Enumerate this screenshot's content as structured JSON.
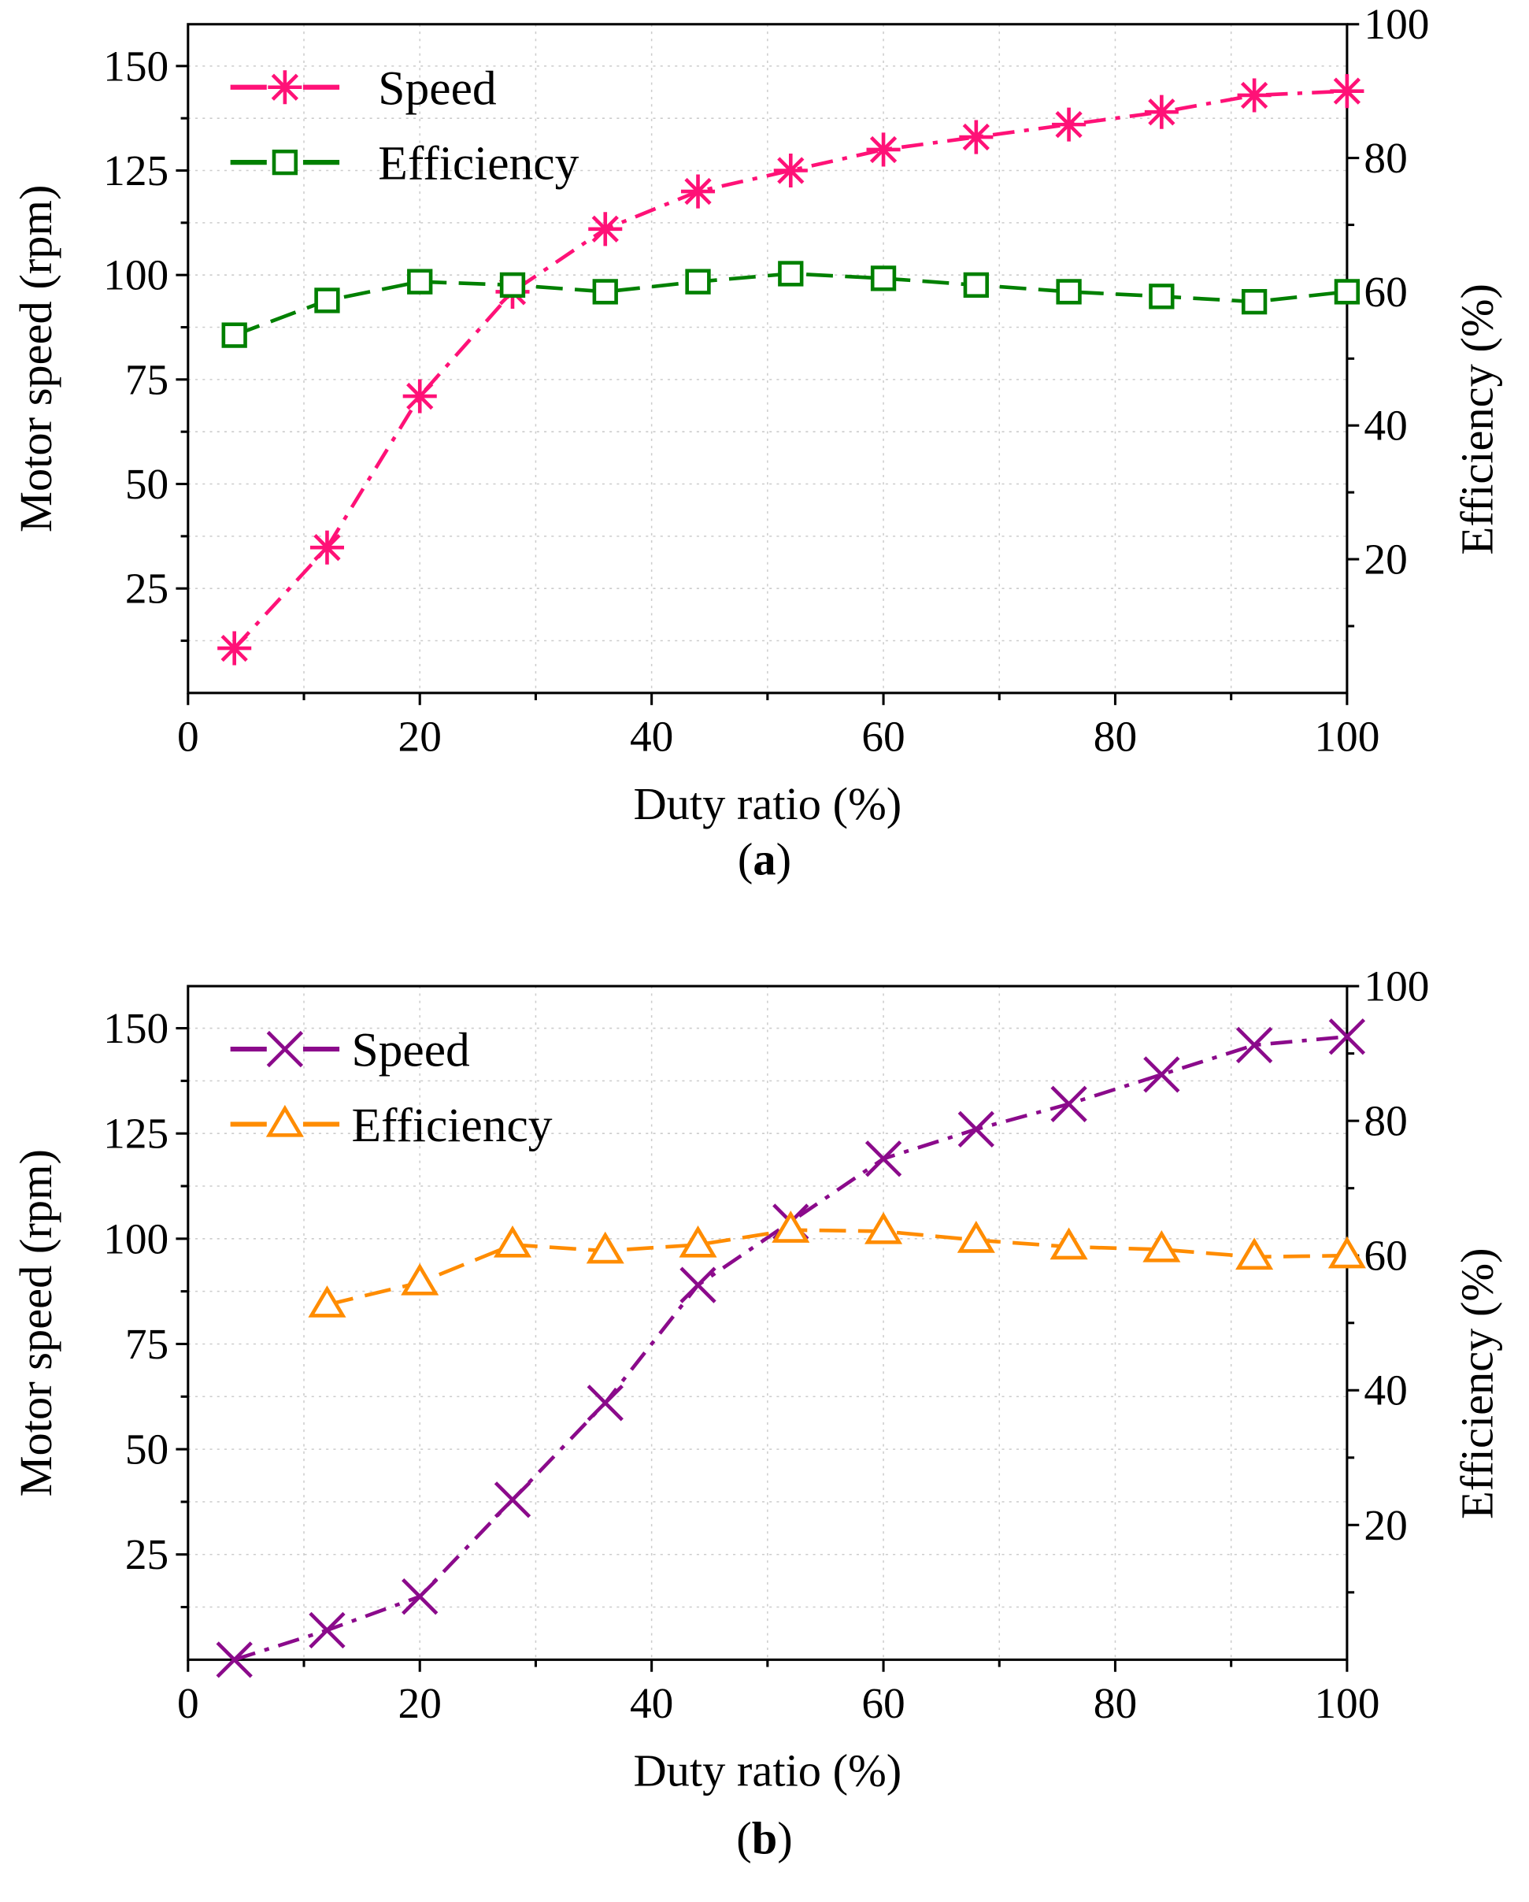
{
  "chart_data": [
    {
      "type": "line",
      "caption": "a",
      "xlabel": "Duty ratio (%)",
      "ylabel": "Motor speed (rpm)",
      "y2label": "Efficiency (%)",
      "xlim": [
        0,
        100
      ],
      "ylim": [
        0,
        160
      ],
      "y2lim": [
        0,
        100
      ],
      "xticks": [
        0,
        20,
        40,
        60,
        80,
        100
      ],
      "yticks": [
        25,
        50,
        75,
        100,
        125,
        150
      ],
      "y2ticks": [
        20,
        40,
        60,
        80,
        100
      ],
      "grid": true,
      "legend": "top-left",
      "series": [
        {
          "name": "Speed",
          "axis": "left",
          "color": "#ff1177",
          "marker": "asterisk",
          "dash": "dash-dot",
          "x": [
            4,
            12,
            20,
            28,
            36,
            44,
            52,
            60,
            68,
            76,
            84,
            92,
            100
          ],
          "y": [
            10.7,
            34.8,
            71,
            96,
            111,
            120,
            125,
            130,
            133,
            136,
            139,
            143,
            144
          ]
        },
        {
          "name": "Efficiency",
          "axis": "right",
          "color": "#008000",
          "marker": "square",
          "dash": "dash",
          "x": [
            4,
            12,
            20,
            28,
            36,
            44,
            52,
            60,
            68,
            76,
            84,
            92,
            100
          ],
          "y": [
            53.5,
            58.7,
            61.5,
            61,
            60,
            61.5,
            62.7,
            62,
            61,
            60,
            59.3,
            58.5,
            60
          ]
        }
      ]
    },
    {
      "type": "line",
      "caption": "b",
      "xlabel": "Duty ratio (%)",
      "ylabel": "Motor speed (rpm)",
      "y2label": "Efficiency (%)",
      "xlim": [
        0,
        100
      ],
      "ylim": [
        0,
        160
      ],
      "y2lim": [
        0,
        100
      ],
      "xticks": [
        0,
        20,
        40,
        60,
        80,
        100
      ],
      "yticks": [
        25,
        50,
        75,
        100,
        125,
        150
      ],
      "y2ticks": [
        20,
        40,
        60,
        80,
        100
      ],
      "grid": true,
      "legend": "top-left",
      "series": [
        {
          "name": "Speed",
          "axis": "left",
          "color": "#8b0a8b",
          "marker": "x",
          "dash": "dash-dot",
          "x": [
            4,
            12,
            20,
            28,
            36,
            44,
            52,
            60,
            68,
            76,
            84,
            92,
            100
          ],
          "y": [
            0,
            7,
            15,
            38,
            61,
            89,
            104,
            119,
            126,
            132,
            139,
            146,
            148
          ]
        },
        {
          "name": "Efficiency",
          "axis": "right",
          "color": "#ff8c00",
          "marker": "triangle",
          "dash": "dash",
          "x": [
            12,
            20,
            28,
            36,
            44,
            52,
            60,
            68,
            76,
            84,
            92,
            100
          ],
          "y": [
            52.7,
            56,
            61.6,
            60.7,
            61.6,
            63.8,
            63.6,
            62.3,
            61.3,
            60.9,
            59.8,
            60
          ]
        }
      ]
    }
  ]
}
